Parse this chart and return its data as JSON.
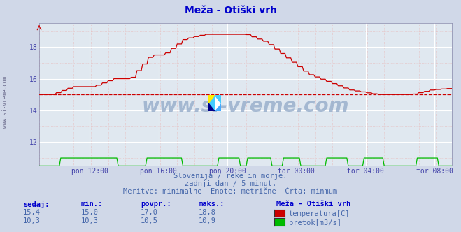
{
  "title": "Meža - Otiški vrh",
  "bg_color": "#d0d8e8",
  "plot_bg_color": "#e0e8f0",
  "grid_major_color": "#ffffff",
  "grid_minor_color": "#e8b8b8",
  "title_color": "#0000cc",
  "label_color": "#4444aa",
  "text_color": "#4466aa",
  "ylim": [
    10.5,
    19.5
  ],
  "yticks": [
    12,
    14,
    16,
    18
  ],
  "n_points": 288,
  "xtick_positions": [
    35,
    83,
    131,
    179,
    227,
    275
  ],
  "xtick_labels": [
    "pon 12:00",
    "pon 16:00",
    "pon 20:00",
    "tor 00:00",
    "tor 04:00",
    "tor 08:00"
  ],
  "watermark": "www.si-vreme.com",
  "subtitle1": "Slovenija / reke in morje.",
  "subtitle2": "zadnji dan / 5 minut.",
  "subtitle3": "Meritve: minimalne  Enote: metrične  Črta: minmum",
  "footer_headers": [
    "sedaj:",
    "min.:",
    "povpr.:",
    "maks.:"
  ],
  "footer_row1": [
    "15,4",
    "15,0",
    "17,0",
    "18,8"
  ],
  "footer_row2": [
    "10,3",
    "10,3",
    "10,5",
    "10,9"
  ],
  "footer_station": "Meža - Otiški vrh",
  "footer_label1": "temperatura[C]",
  "footer_label2": "pretok[m3/s]",
  "color_temp": "#cc0000",
  "color_flow": "#00bb00",
  "dashed_line_value": 15.0,
  "spine_color": "#8888aa",
  "left_label": "www.si-vreme.com"
}
